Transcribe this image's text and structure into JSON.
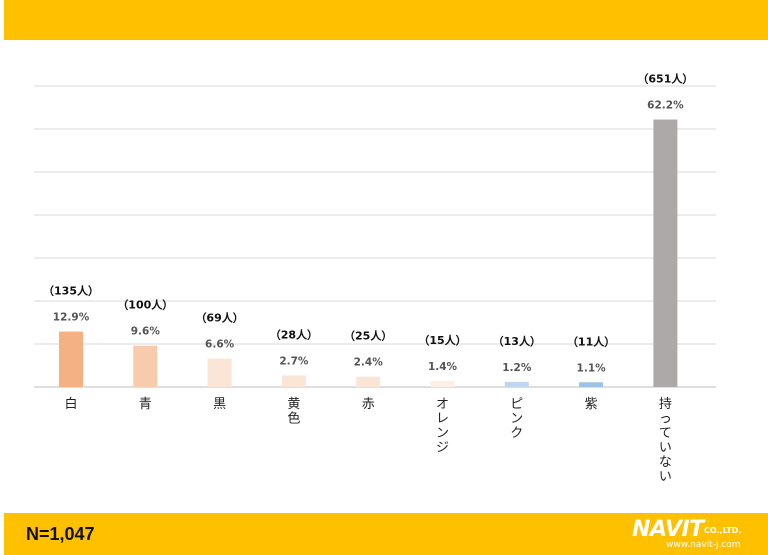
{
  "footer": {
    "n_text": "N=1,047",
    "logo_text": "NAVIT",
    "logo_suffix": "CO.,LTD.",
    "logo_url": "www.navit-j.com"
  },
  "colors": {
    "banner": "#FFC000"
  },
  "chart_data": {
    "type": "bar",
    "categories": [
      "白",
      "青",
      "黒",
      "黄色",
      "赤",
      "オレンジ",
      "ピンク",
      "紫",
      "持っていない"
    ],
    "values": [
      12.9,
      9.6,
      6.6,
      2.7,
      2.4,
      1.4,
      1.2,
      1.1,
      62.2
    ],
    "value_labels": [
      "12.9%",
      "9.6%",
      "6.6%",
      "2.7%",
      "2.4%",
      "1.4%",
      "1.2%",
      "1.1%",
      "62.2%"
    ],
    "count_labels": [
      "（135人）",
      "（100人）",
      "（69人）",
      "（28人）",
      "（25人）",
      "（15人）",
      "（13人）",
      "（11人）",
      "（651人）"
    ],
    "colors": [
      "#F4B183",
      "#F8CBAD",
      "#FBE5D6",
      "#FBE5D6",
      "#FBE5D6",
      "#FDEEE6",
      "#BDD7EE",
      "#9DC3E6",
      "#ADA9A9"
    ],
    "ylim": [
      0,
      70
    ],
    "grid": true,
    "title": "",
    "xlabel": "",
    "ylabel": ""
  }
}
